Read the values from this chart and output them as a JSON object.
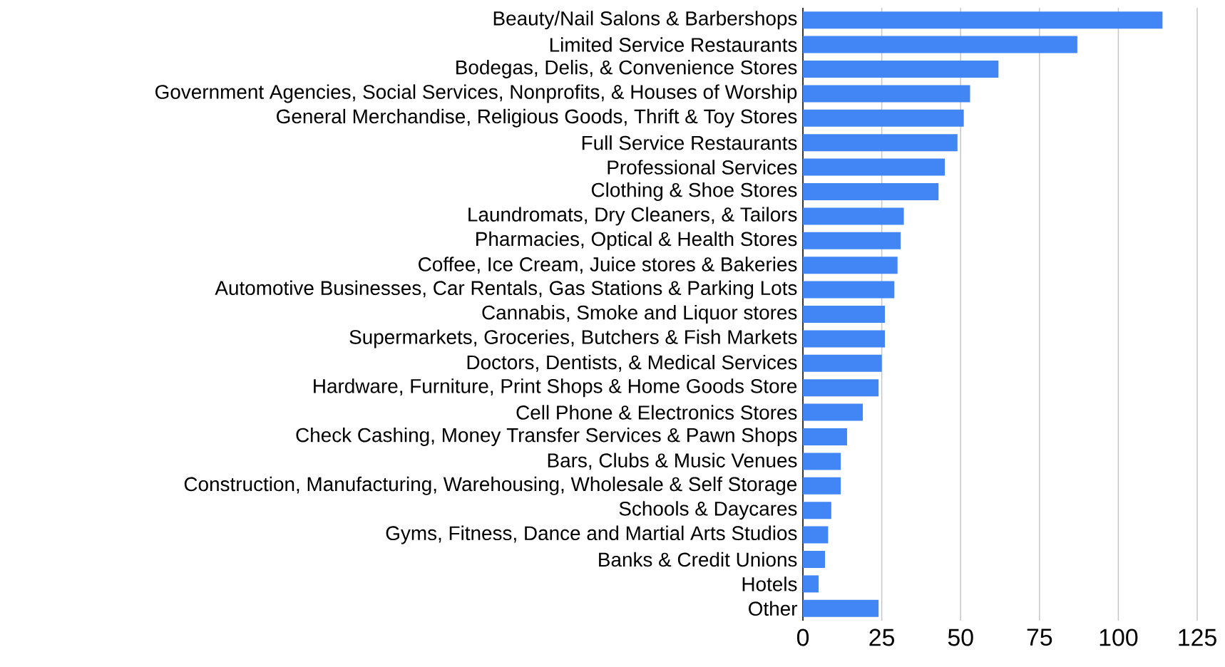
{
  "chart_data": {
    "type": "bar",
    "orientation": "horizontal",
    "categories": [
      "Beauty/Nail Salons & Barbershops",
      "Limited Service Restaurants",
      "Bodegas, Delis, & Convenience Stores",
      "Government Agencies, Social Services, Nonprofits, & Houses of Worship",
      "General Merchandise, Religious Goods, Thrift & Toy Stores",
      "Full Service Restaurants",
      "Professional Services",
      "Clothing & Shoe Stores",
      "Laundromats, Dry Cleaners, & Tailors",
      "Pharmacies, Optical & Health Stores",
      "Coffee, Ice Cream, Juice stores & Bakeries",
      "Automotive Businesses, Car Rentals, Gas Stations & Parking Lots",
      "Cannabis, Smoke and Liquor stores",
      "Supermarkets, Groceries, Butchers & Fish Markets",
      "Doctors, Dentists, & Medical Services",
      "Hardware, Furniture, Print Shops & Home Goods Store",
      "Cell Phone & Electronics Stores",
      "Check Cashing, Money Transfer Services & Pawn Shops",
      "Bars, Clubs & Music Venues",
      "Construction, Manufacturing, Warehousing, Wholesale & Self Storage",
      "Schools & Daycares",
      "Gyms, Fitness, Dance and Martial Arts Studios",
      "Banks & Credit Unions",
      "Hotels",
      "Other"
    ],
    "values": [
      114,
      87,
      62,
      53,
      51,
      49,
      45,
      43,
      32,
      31,
      30,
      29,
      26,
      26,
      25,
      24,
      19,
      14,
      12,
      12,
      9,
      8,
      7,
      5,
      24
    ],
    "color": "#4285f4",
    "xlim": [
      0,
      125
    ],
    "xticks": [
      0,
      25,
      50,
      75,
      100,
      125
    ],
    "grid": "x"
  }
}
